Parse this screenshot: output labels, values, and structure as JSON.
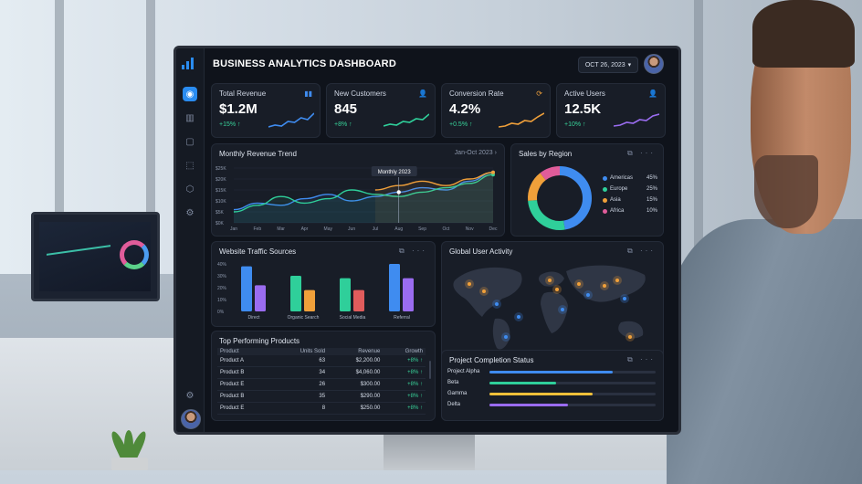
{
  "app": {
    "title": "BUSINESS ANALYTICS DASHBOARD",
    "date": "OCT 26, 2023",
    "date_icon": "chevron-down-icon"
  },
  "sidebar": {
    "items": [
      {
        "icon": "dashboard-icon",
        "glyph": "◉",
        "active": true
      },
      {
        "icon": "bar-chart-icon",
        "glyph": "▥"
      },
      {
        "icon": "chat-icon",
        "glyph": "▢"
      },
      {
        "icon": "lock-icon",
        "glyph": "⬚"
      },
      {
        "icon": "cube-icon",
        "glyph": "⬡"
      },
      {
        "icon": "settings-icon",
        "glyph": "⚙"
      }
    ],
    "bottom_icon": {
      "icon": "gear-icon",
      "glyph": "⚙"
    }
  },
  "kpis": [
    {
      "title": "Total Revenue",
      "value": "$1.2M",
      "change": "+15% ↑",
      "icon": "bar-chart-icon",
      "glyph": "▮▮",
      "color": "#3f8cf0",
      "trend": [
        0.15,
        0.25,
        0.2,
        0.45,
        0.4,
        0.65,
        0.55,
        0.9
      ]
    },
    {
      "title": "New Customers",
      "value": "845",
      "change": "+8% ↑",
      "icon": "users-icon",
      "glyph": "👤",
      "color": "#2fcf9a",
      "trend": [
        0.2,
        0.3,
        0.25,
        0.45,
        0.4,
        0.6,
        0.55,
        0.85
      ]
    },
    {
      "title": "Conversion Rate",
      "value": "4.2%",
      "change": "+0.5% ↑",
      "icon": "refresh-icon",
      "glyph": "⟳",
      "color": "#f0a03a",
      "trend": [
        0.15,
        0.2,
        0.35,
        0.3,
        0.5,
        0.45,
        0.7,
        0.9
      ]
    },
    {
      "title": "Active Users",
      "value": "12.5K",
      "change": "+10% ↑",
      "icon": "user-icon",
      "glyph": "👤",
      "color": "#9a6cf0",
      "trend": [
        0.2,
        0.25,
        0.4,
        0.35,
        0.55,
        0.5,
        0.75,
        0.85
      ]
    }
  ],
  "revenue_trend": {
    "title": "Monthly Revenue Trend",
    "range": "Jan-Oct 2023",
    "tooltip": "Monthly 2023",
    "y_ticks": [
      "$25K",
      "$20K",
      "$15K",
      "$10K",
      "$5K",
      "$0K"
    ],
    "months": [
      "Jan",
      "Feb",
      "Mar",
      "Apr",
      "May",
      "Jun",
      "Jul",
      "Aug",
      "Sep",
      "Oct",
      "Nov",
      "Dec"
    ]
  },
  "chart_data": [
    {
      "type": "line",
      "title": "Monthly Revenue Trend",
      "categories": [
        "Jan",
        "Feb",
        "Mar",
        "Apr",
        "May",
        "Jun",
        "Jul",
        "Aug",
        "Sep",
        "Oct",
        "Nov",
        "Dec"
      ],
      "series": [
        {
          "values": [
            6,
            9,
            8,
            11,
            13,
            10,
            12,
            14,
            16,
            15,
            19,
            23
          ],
          "color": "#3f8cf0"
        },
        {
          "values": [
            5,
            8,
            12,
            9,
            11,
            15,
            13,
            12,
            14,
            16,
            18,
            22
          ],
          "color": "#2fcf9a"
        },
        {
          "values": [
            null,
            null,
            null,
            null,
            null,
            null,
            15,
            17,
            19,
            17,
            20,
            23
          ],
          "color": "#f0a03a"
        }
      ],
      "ylim": [
        0,
        25
      ]
    },
    {
      "type": "pie",
      "title": "Sales by Region",
      "categories": [
        "Americas",
        "Europe",
        "Asia",
        "Africa"
      ],
      "values": [
        45,
        25,
        15,
        10
      ],
      "colors": [
        "#3f8cf0",
        "#2fcf9a",
        "#f0a03a",
        "#e05c9a"
      ]
    },
    {
      "type": "bar",
      "title": "Website Traffic Sources",
      "categories": [
        "Direct",
        "Organic Search",
        "Social Media",
        "Referral"
      ],
      "series": [
        {
          "values": [
            38,
            30,
            28,
            40
          ],
          "colors": [
            "#3f8cf0",
            "#2fcf9a",
            "#2fcf9a",
            "#3f8cf0"
          ]
        },
        {
          "values": [
            22,
            18,
            18,
            28
          ],
          "colors": [
            "#9a6cf0",
            "#f0a03a",
            "#e05c5c",
            "#9a6cf0"
          ]
        }
      ],
      "y_ticks": [
        "40%",
        "30%",
        "20%",
        "10%",
        "0%"
      ],
      "ylim": [
        0,
        40
      ]
    }
  ],
  "sales_region": {
    "title": "Sales by Region",
    "legend": [
      {
        "label": "Americas",
        "pct": "45%",
        "color": "#3f8cf0"
      },
      {
        "label": "Europe",
        "pct": "25%",
        "color": "#2fcf9a"
      },
      {
        "label": "Asia",
        "pct": "15%",
        "color": "#f0a03a"
      },
      {
        "label": "Africa",
        "pct": "10%",
        "color": "#e05c9a"
      }
    ]
  },
  "traffic": {
    "title": "Website Traffic Sources"
  },
  "activity": {
    "title": "Global User Activity"
  },
  "top_products": {
    "title": "Top Performing Products",
    "columns": [
      "Product",
      "Units Sold",
      "Revenue",
      "Growth"
    ],
    "rows": [
      [
        "Product A",
        "63",
        "$2,200.00",
        "+8% ↑"
      ],
      [
        "Product B",
        "34",
        "$4,060.00",
        "+8% ↑"
      ],
      [
        "Product E",
        "26",
        "$300.00",
        "+8% ↑"
      ],
      [
        "Product B",
        "35",
        "$290.00",
        "+8% ↑"
      ],
      [
        "Product E",
        "8",
        "$250.00",
        "+8% ↑"
      ]
    ]
  },
  "projects": {
    "title": "Project Completion Status",
    "items": [
      {
        "label": "Project Alpha",
        "progress": 0.74,
        "color": "#3f8cf0"
      },
      {
        "label": "Beta",
        "progress": 0.4,
        "color": "#2fcf9a"
      },
      {
        "label": "Gamma",
        "progress": 0.62,
        "color": "#f0c03a"
      },
      {
        "label": "Delta",
        "progress": 0.47,
        "color": "#9a6cf0"
      }
    ]
  }
}
